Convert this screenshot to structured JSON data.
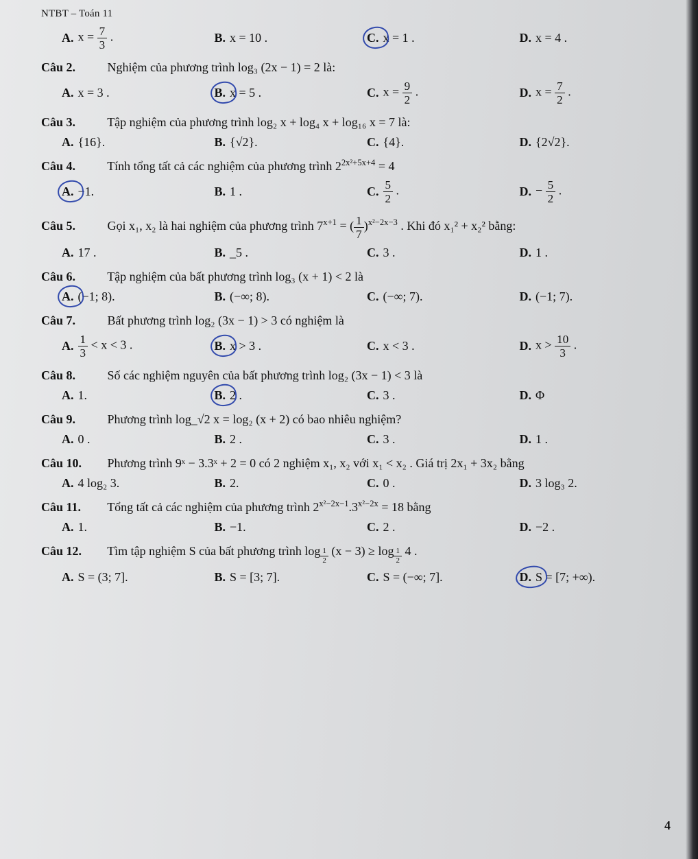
{
  "header": "NTBT – Toán 11",
  "page_number": "4",
  "colors": {
    "pen": "#1f3aa6",
    "text": "#111",
    "paper_light": "#e8e9ea",
    "paper_dark": "#cfd1d3"
  },
  "q1": {
    "opts": {
      "A": "x = 7⁄3 .",
      "B": "x = 10 .",
      "C": "x = 1 .",
      "D": "x = 4 ."
    },
    "A_frac": {
      "n": "7",
      "d": "3"
    },
    "circled": "C"
  },
  "q2": {
    "label": "Câu 2.",
    "stem": "Nghiệm của phương trình  log₃ (2x − 1) = 2  là:",
    "opts": {
      "A": "x = 3 .",
      "B": "x = 5 .",
      "C": "x = 9⁄2 .",
      "D": "x = 7⁄2 ."
    },
    "C_frac": {
      "n": "9",
      "d": "2"
    },
    "D_frac": {
      "n": "7",
      "d": "2"
    },
    "circled": "B"
  },
  "q3": {
    "label": "Câu 3.",
    "stem": "Tập nghiệm của phương trình  log₂ x + log₄ x + log₁₆ x = 7  là:",
    "opts": {
      "A": "{16}.",
      "B": "{√2}.",
      "C": "{4}.",
      "D": "{2√2}."
    }
  },
  "q4": {
    "label": "Câu 4.",
    "stem_prefix": "Tính tổng tất cả các nghiệm của phương trình  2",
    "stem_exp": "2x²+5x+4",
    "stem_suffix": " = 4",
    "opts": {
      "A": "−1.",
      "B": "1 .",
      "C": "5⁄2 .",
      "D": "− 5⁄2 ."
    },
    "C_frac": {
      "n": "5",
      "d": "2"
    },
    "D_frac": {
      "n": "5",
      "d": "2"
    },
    "circled": "A"
  },
  "q5": {
    "label": "Câu 5.",
    "stem_a": "Gọi  x₁, x₂  là hai nghiệm của phương trình  7",
    "stem_exp1": "x+1",
    "stem_mid": " = (",
    "stem_frac": {
      "n": "1",
      "d": "7"
    },
    "stem_after_frac": ")",
    "stem_exp2": "x²−2x−3",
    "stem_b": " . Khi đó  x₁² + x₂²  bằng:",
    "opts": {
      "A": "17 .",
      "B": "_5 .",
      "C": "3 .",
      "D": "1 ."
    }
  },
  "q6": {
    "label": "Câu 6.",
    "stem": "Tập nghiệm của bất phương trình  log₃ (x + 1) < 2  là",
    "opts": {
      "A": "(−1; 8).",
      "B": "(−∞; 8).",
      "C": "(−∞; 7).",
      "D": "(−1; 7)."
    },
    "circled": "A"
  },
  "q7": {
    "label": "Câu 7.",
    "stem": "Bất phương trình  log₂ (3x − 1) > 3  có nghiệm là",
    "opts": {
      "A": "1⁄3 < x < 3 .",
      "B": "x > 3 .",
      "C": "x < 3 .",
      "D": "x > 10⁄3 ."
    },
    "A_frac": {
      "n": "1",
      "d": "3"
    },
    "D_frac": {
      "n": "10",
      "d": "3"
    },
    "circled": "B"
  },
  "q8": {
    "label": "Câu 8.",
    "stem": "Số các nghiệm nguyên của bất phương trình  log₂ (3x − 1) < 3  là",
    "opts": {
      "A": "1.",
      "B": "2 .",
      "C": "3 .",
      "D": "Φ"
    },
    "circled": "B"
  },
  "q9": {
    "label": "Câu 9.",
    "stem": "Phương trình  log_√2 x = log₂ (x + 2)  có bao nhiêu nghiệm?",
    "opts": {
      "A": "0 .",
      "B": "2 .",
      "C": "3 .",
      "D": "1 ."
    }
  },
  "q10": {
    "label": "Câu 10.",
    "stem": "Phương trình  9ˣ − 3.3ˣ + 2 = 0  có 2 nghiệm  x₁, x₂  với  x₁ < x₂ . Giá trị  2x₁ + 3x₂  bằng",
    "opts": {
      "A": "4 log₂ 3.",
      "B": "2.",
      "C": "0  .",
      "D": "3 log₃ 2."
    }
  },
  "q11": {
    "label": "Câu 11.",
    "stem_a": "Tổng tất cả các nghiệm của phương trình  2",
    "stem_exp1": "x²−2x−1",
    "stem_mid": ".3",
    "stem_exp2": "x²−2x",
    "stem_b": " = 18  bằng",
    "opts": {
      "A": "1.",
      "B": "−1.",
      "C": "2 .",
      "D": "−2 ."
    }
  },
  "q12": {
    "label": "Câu 12.",
    "stem_a": "Tìm tập nghiệm  S  của bất phương trình  log",
    "stem_sub1_frac": {
      "n": "1",
      "d": "2"
    },
    "stem_mid": "(x − 3) ≥ log",
    "stem_sub2_frac": {
      "n": "1",
      "d": "2"
    },
    "stem_b": " 4 .",
    "opts": {
      "A": "S = (3; 7].",
      "B": "S = [3; 7].",
      "C": "S = (−∞; 7].",
      "D": "S = [7; +∞)."
    },
    "circled": "D"
  }
}
